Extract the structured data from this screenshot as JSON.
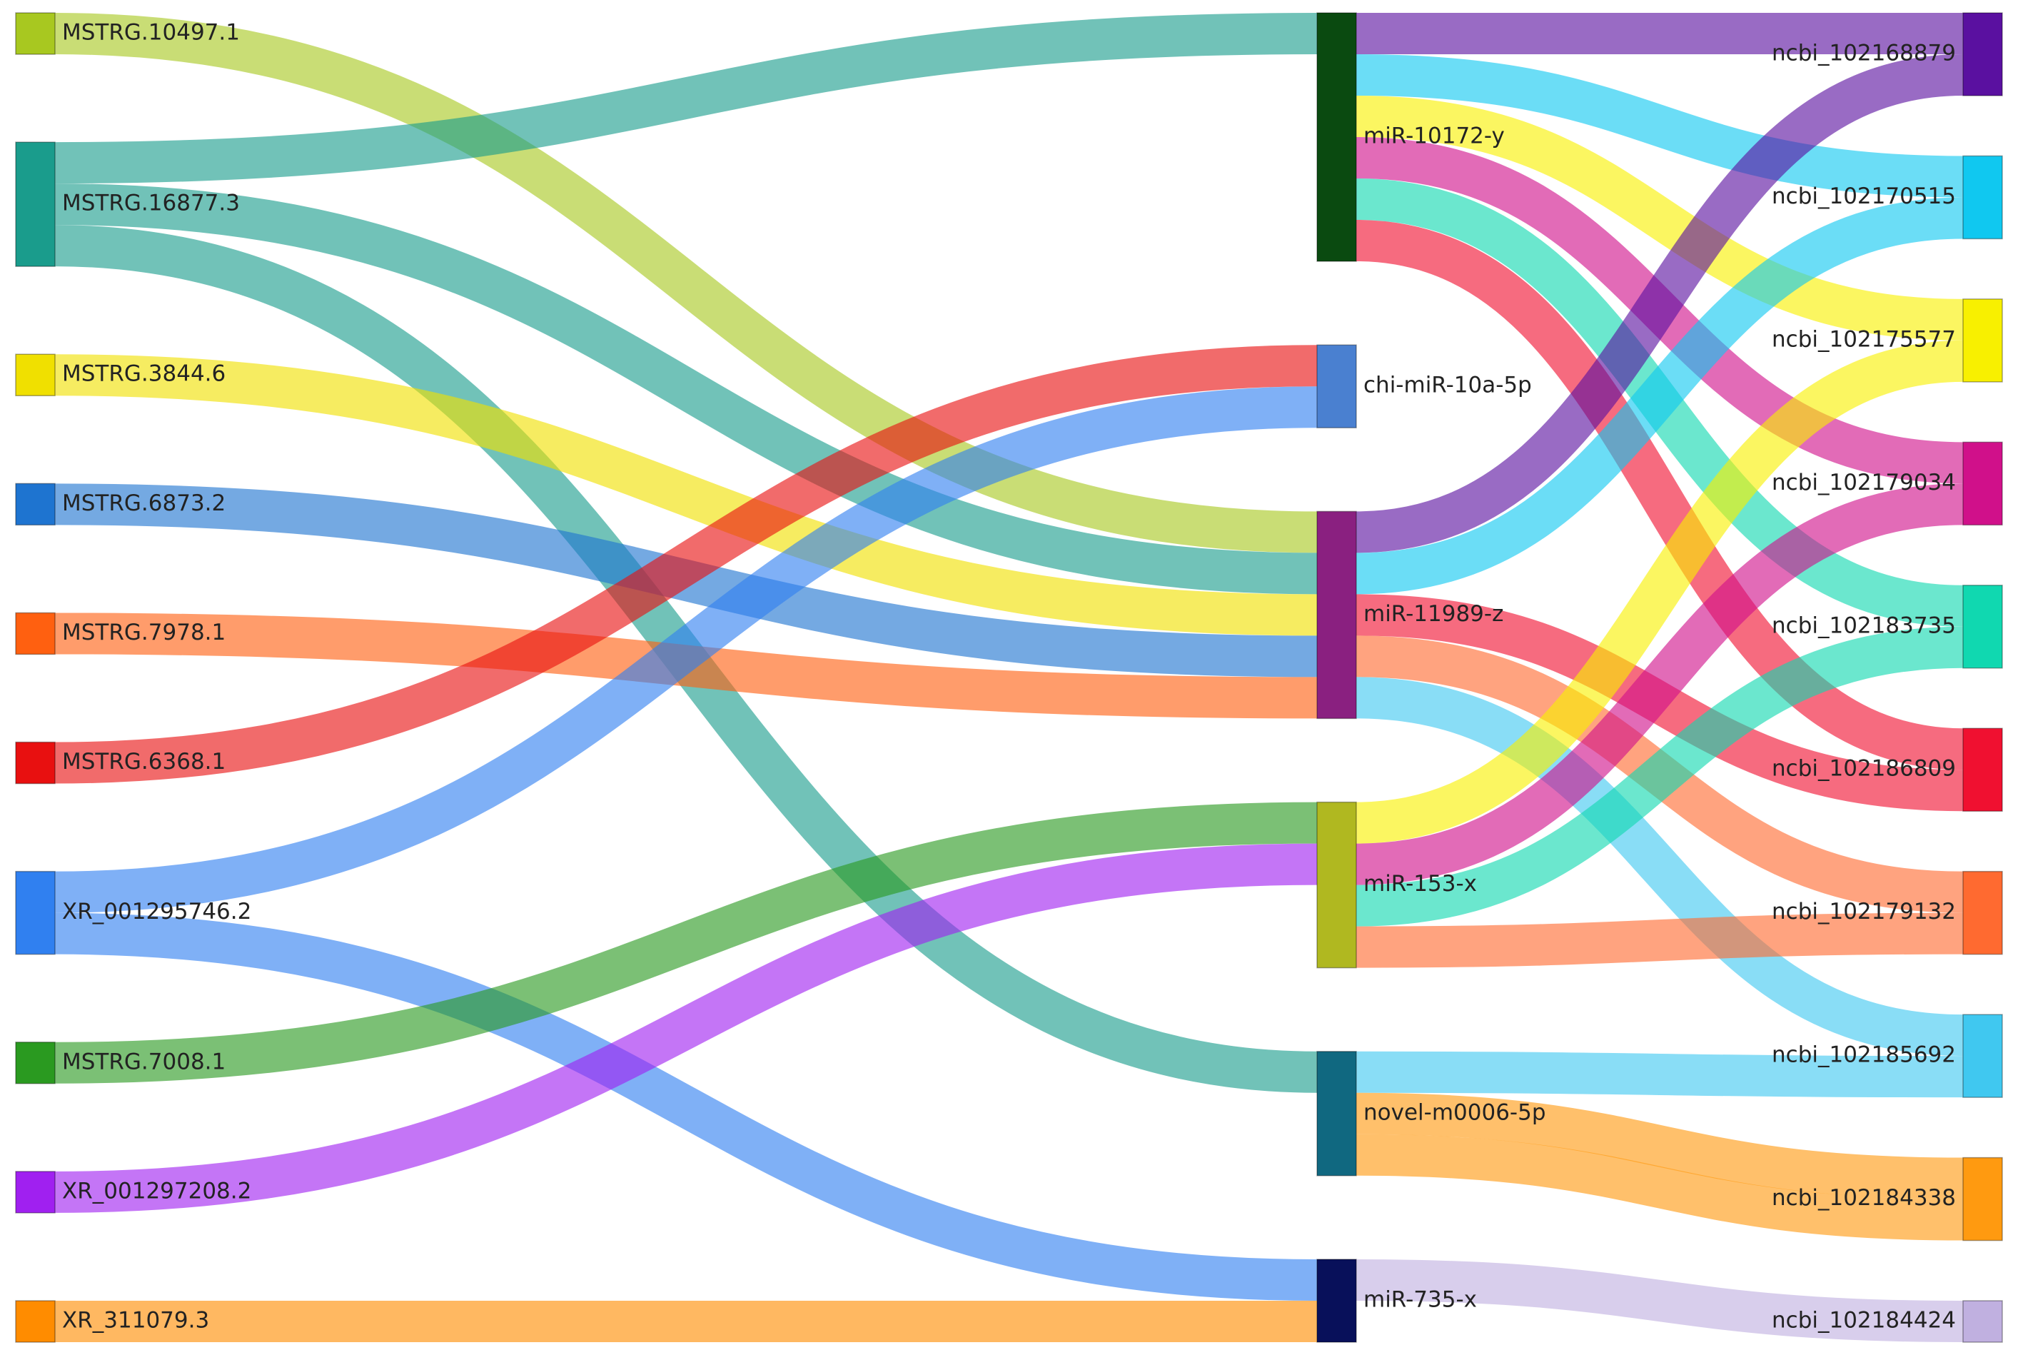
{
  "chart_data": {
    "type": "sankey",
    "nodes": [
      {
        "name": "MSTRG.10497.1",
        "color": "#a8c820",
        "column": 0
      },
      {
        "name": "MSTRG.16877.3",
        "color": "#1a9c8c",
        "column": 0
      },
      {
        "name": "MSTRG.3844.6",
        "color": "#f0e000",
        "column": 0
      },
      {
        "name": "MSTRG.6873.2",
        "color": "#1e74d0",
        "column": 0
      },
      {
        "name": "MSTRG.7978.1",
        "color": "#ff6010",
        "column": 0
      },
      {
        "name": "MSTRG.6368.1",
        "color": "#e81010",
        "column": 0
      },
      {
        "name": "XR_001295746.2",
        "color": "#3080f0",
        "column": 0
      },
      {
        "name": "MSTRG.7008.1",
        "color": "#2a9a20",
        "column": 0
      },
      {
        "name": "XR_001297208.2",
        "color": "#a020f0",
        "column": 0
      },
      {
        "name": "XR_311079.3",
        "color": "#ff8c00",
        "column": 0
      },
      {
        "name": "miR-10172-y",
        "color": "#0a4a10",
        "column": 1
      },
      {
        "name": "chi-miR-10a-5p",
        "color": "#4a80d0",
        "column": 1
      },
      {
        "name": "miR-11989-z",
        "color": "#8a2080",
        "column": 1
      },
      {
        "name": "miR-153-x",
        "color": "#b0b820",
        "column": 1
      },
      {
        "name": "novel-m0006-5p",
        "color": "#106880",
        "column": 1
      },
      {
        "name": "miR-735-x",
        "color": "#08105a",
        "column": 1
      },
      {
        "name": "ncbi_102168879",
        "color": "#5a10a0",
        "column": 2
      },
      {
        "name": "ncbi_102170515",
        "color": "#10c8f0",
        "column": 2
      },
      {
        "name": "ncbi_102175577",
        "color": "#f8f000",
        "column": 2
      },
      {
        "name": "ncbi_102179034",
        "color": "#d0108a",
        "column": 2
      },
      {
        "name": "ncbi_102183735",
        "color": "#10d8b0",
        "column": 2
      },
      {
        "name": "ncbi_102186809",
        "color": "#f01030",
        "column": 2
      },
      {
        "name": "ncbi_102179132",
        "color": "#ff6a30",
        "column": 2
      },
      {
        "name": "ncbi_102185692",
        "color": "#40c8f0",
        "column": 2
      },
      {
        "name": "ncbi_102184338",
        "color": "#ff9a10",
        "column": 2
      },
      {
        "name": "ncbi_102184424",
        "color": "#c0b0e0",
        "column": 2
      }
    ],
    "links": [
      {
        "source": 0,
        "target": 12,
        "value": 1
      },
      {
        "source": 1,
        "target": 10,
        "value": 1
      },
      {
        "source": 1,
        "target": 12,
        "value": 1
      },
      {
        "source": 1,
        "target": 14,
        "value": 1
      },
      {
        "source": 2,
        "target": 12,
        "value": 1
      },
      {
        "source": 3,
        "target": 12,
        "value": 1
      },
      {
        "source": 4,
        "target": 12,
        "value": 1
      },
      {
        "source": 5,
        "target": 11,
        "value": 1
      },
      {
        "source": 6,
        "target": 11,
        "value": 1
      },
      {
        "source": 6,
        "target": 15,
        "value": 1
      },
      {
        "source": 7,
        "target": 13,
        "value": 1
      },
      {
        "source": 8,
        "target": 13,
        "value": 1
      },
      {
        "source": 9,
        "target": 15,
        "value": 1
      },
      {
        "source": 10,
        "target": 16,
        "value": 1
      },
      {
        "source": 10,
        "target": 17,
        "value": 1
      },
      {
        "source": 10,
        "target": 18,
        "value": 1
      },
      {
        "source": 10,
        "target": 19,
        "value": 1
      },
      {
        "source": 10,
        "target": 20,
        "value": 1
      },
      {
        "source": 10,
        "target": 21,
        "value": 1
      },
      {
        "source": 12,
        "target": 16,
        "value": 1
      },
      {
        "source": 12,
        "target": 17,
        "value": 1
      },
      {
        "source": 12,
        "target": 21,
        "value": 1
      },
      {
        "source": 12,
        "target": 22,
        "value": 1
      },
      {
        "source": 12,
        "target": 23,
        "value": 1
      },
      {
        "source": 13,
        "target": 18,
        "value": 1
      },
      {
        "source": 13,
        "target": 19,
        "value": 1
      },
      {
        "source": 13,
        "target": 20,
        "value": 1
      },
      {
        "source": 13,
        "target": 22,
        "value": 1
      },
      {
        "source": 14,
        "target": 23,
        "value": 1
      },
      {
        "source": 14,
        "target": 24,
        "value": 1
      },
      {
        "source": 14,
        "target": 24,
        "value": 1
      },
      {
        "source": 15,
        "target": 25,
        "value": 1
      }
    ]
  }
}
